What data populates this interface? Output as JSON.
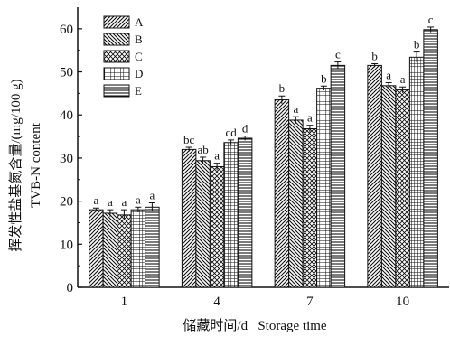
{
  "chart_data": {
    "type": "bar",
    "categories": [
      "1",
      "4",
      "7",
      "10"
    ],
    "series": [
      {
        "name": "A",
        "values": [
          18.0,
          32.0,
          43.5,
          51.5
        ],
        "errors": [
          0.4,
          0.5,
          0.9,
          0.4
        ],
        "labels": [
          "a",
          "bc",
          "b",
          "b"
        ]
      },
      {
        "name": "B",
        "values": [
          17.2,
          29.4,
          38.8,
          46.8
        ],
        "errors": [
          0.8,
          0.8,
          0.8,
          0.7
        ],
        "labels": [
          "a",
          "ab",
          "a",
          "a"
        ]
      },
      {
        "name": "C",
        "values": [
          16.8,
          28.0,
          36.8,
          45.8
        ],
        "errors": [
          1.2,
          0.8,
          0.8,
          0.7
        ],
        "labels": [
          "a",
          "a",
          "a",
          "a"
        ]
      },
      {
        "name": "D",
        "values": [
          18.0,
          33.6,
          46.2,
          53.4
        ],
        "errors": [
          0.6,
          0.6,
          0.5,
          1.2
        ],
        "labels": [
          "a",
          "cd",
          "b",
          "b"
        ]
      },
      {
        "name": "E",
        "values": [
          18.6,
          34.6,
          51.5,
          59.8
        ],
        "errors": [
          1.0,
          0.5,
          0.8,
          0.6
        ],
        "labels": [
          "a",
          "d",
          "c",
          "c"
        ]
      }
    ],
    "xlabel": "储藏时间/d   Storage time",
    "ylabel_cn": "挥发性盐基氮含量/(mg/100 g)",
    "ylabel_en": "TVB-N content",
    "ylim": [
      0,
      65
    ],
    "yticks": [
      0,
      10,
      20,
      30,
      40,
      50,
      60
    ],
    "legend_position": "top-left",
    "grid": false
  }
}
